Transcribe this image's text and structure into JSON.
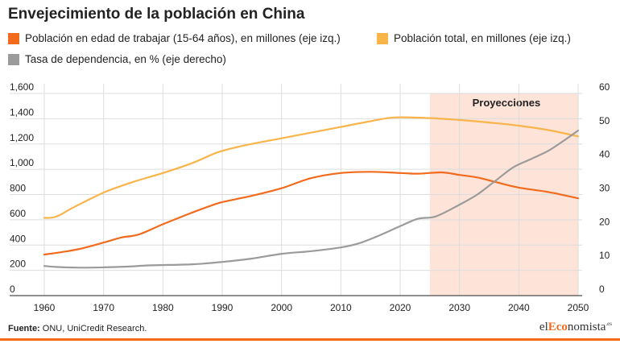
{
  "title": "Envejecimiento de la población en China",
  "source_label": "Fuente:",
  "source_text": " ONU,  UniCredit Research.",
  "brand": {
    "pre": "el",
    "hl": "Eco",
    "post": "nomista",
    "suffix": ".es"
  },
  "colors": {
    "working_age": "#f26b1d",
    "total": "#f9b44a",
    "dependency": "#9b9b9b",
    "projection_band": "#fde3d8",
    "grid": "#dddddd",
    "axis": "#222222"
  },
  "chart_data": {
    "type": "line",
    "projection_label": "Proyecciones",
    "projection_range": [
      2025,
      2050
    ],
    "x_ticks": [
      "1960",
      "1970",
      "1980",
      "1990",
      "2000",
      "2010",
      "2020",
      "2030",
      "2040",
      "2050"
    ],
    "xlim": [
      1960,
      2050
    ],
    "y_left_ticks": [
      "0",
      "200",
      "400",
      "600",
      "800",
      "1,000",
      "1,200",
      "1,400",
      "1,600"
    ],
    "ylim_left": [
      0,
      1600
    ],
    "y_right_ticks": [
      "0",
      "10",
      "20",
      "30",
      "40",
      "50",
      "60"
    ],
    "ylim_right": [
      0,
      60
    ],
    "grid": true,
    "legend_position": "top",
    "series": [
      {
        "name": "Población en edad de trabajar (15-64 años), en millones (eje izq.)",
        "axis": "left",
        "color_key": "working_age",
        "x": [
          1960,
          1963,
          1966,
          1970,
          1973,
          1976,
          1980,
          1984,
          1988,
          1990,
          1995,
          2000,
          2005,
          2010,
          2015,
          2020,
          2023,
          2027,
          2030,
          2033,
          2036,
          2040,
          2045,
          2050
        ],
        "y": [
          325,
          345,
          370,
          420,
          460,
          485,
          565,
          640,
          710,
          740,
          790,
          850,
          930,
          970,
          980,
          970,
          965,
          975,
          955,
          935,
          900,
          855,
          820,
          770
        ]
      },
      {
        "name": "Población total, en millones (eje izq.)",
        "axis": "left",
        "color_key": "total",
        "x": [
          1960,
          1962,
          1965,
          1970,
          1975,
          1980,
          1985,
          1989,
          1992,
          1996,
          2000,
          2005,
          2010,
          2015,
          2019,
          2025,
          2030,
          2035,
          2040,
          2045,
          2050
        ],
        "y": [
          615,
          625,
          700,
          815,
          900,
          970,
          1050,
          1130,
          1170,
          1210,
          1245,
          1290,
          1335,
          1380,
          1410,
          1405,
          1390,
          1370,
          1345,
          1310,
          1260
        ]
      },
      {
        "name": "Tasa de dependencia, en % (eje derecho)",
        "axis": "right",
        "color_key": "dependency",
        "x": [
          1960,
          1962,
          1966,
          1970,
          1974,
          1978,
          1985,
          1990,
          1995,
          2000,
          2005,
          2010,
          2013,
          2016,
          2020,
          2023,
          2026,
          2030,
          2033,
          2036,
          2039,
          2042,
          2045,
          2048,
          2050
        ],
        "y": [
          8.8,
          8.5,
          8.3,
          8.4,
          8.6,
          9.0,
          9.3,
          10.0,
          11.0,
          12.4,
          13.2,
          14.3,
          15.5,
          17.5,
          20.6,
          22.8,
          23.5,
          27.0,
          30.0,
          34.0,
          38.0,
          40.5,
          43.0,
          46.5,
          49.0
        ]
      }
    ]
  }
}
